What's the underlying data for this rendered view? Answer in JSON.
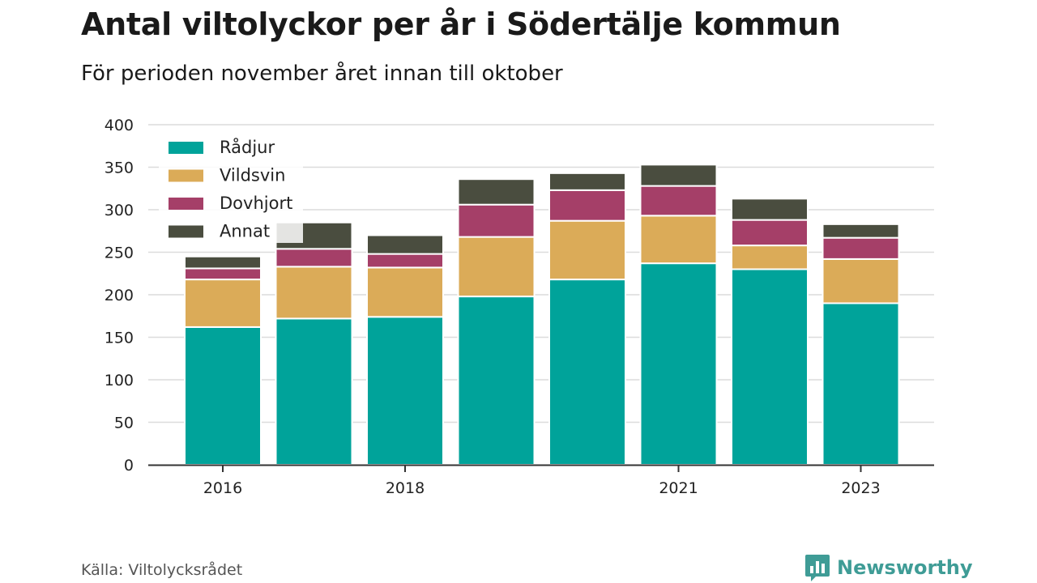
{
  "title": "Antal viltolyckor per år i Södertälje kommun",
  "subtitle": "För perioden november året innan till oktober",
  "source": "Källa: Viltolycksrådet",
  "brand": {
    "name": "Newsworthy",
    "icon": "bar-chart-badge-icon",
    "color": "#3f9c96"
  },
  "chart_data": {
    "type": "bar",
    "stacked": true,
    "categories": [
      "2016",
      "2017",
      "2018",
      "2019",
      "2020",
      "2021",
      "2022",
      "2023"
    ],
    "x_tick_labels": [
      "2016",
      "",
      "2018",
      "",
      "",
      "2021",
      "",
      "2023"
    ],
    "series": [
      {
        "name": "Rådjur",
        "color": "#00a39a",
        "values": [
          162,
          172,
          174,
          198,
          218,
          237,
          230,
          190
        ]
      },
      {
        "name": "Vildsvin",
        "color": "#dbab58",
        "values": [
          56,
          61,
          58,
          70,
          69,
          56,
          28,
          52
        ]
      },
      {
        "name": "Dovhjort",
        "color": "#a53f68",
        "values": [
          13,
          21,
          16,
          38,
          36,
          35,
          30,
          25
        ]
      },
      {
        "name": "Annat",
        "color": "#4a4d3f",
        "values": [
          14,
          31,
          22,
          30,
          20,
          25,
          25,
          16
        ]
      }
    ],
    "ylim": [
      0,
      400
    ],
    "y_ticks": [
      0,
      50,
      100,
      150,
      200,
      250,
      300,
      350,
      400
    ],
    "xlabel": "",
    "ylabel": "",
    "grid": true,
    "legend_position": "top-left"
  }
}
